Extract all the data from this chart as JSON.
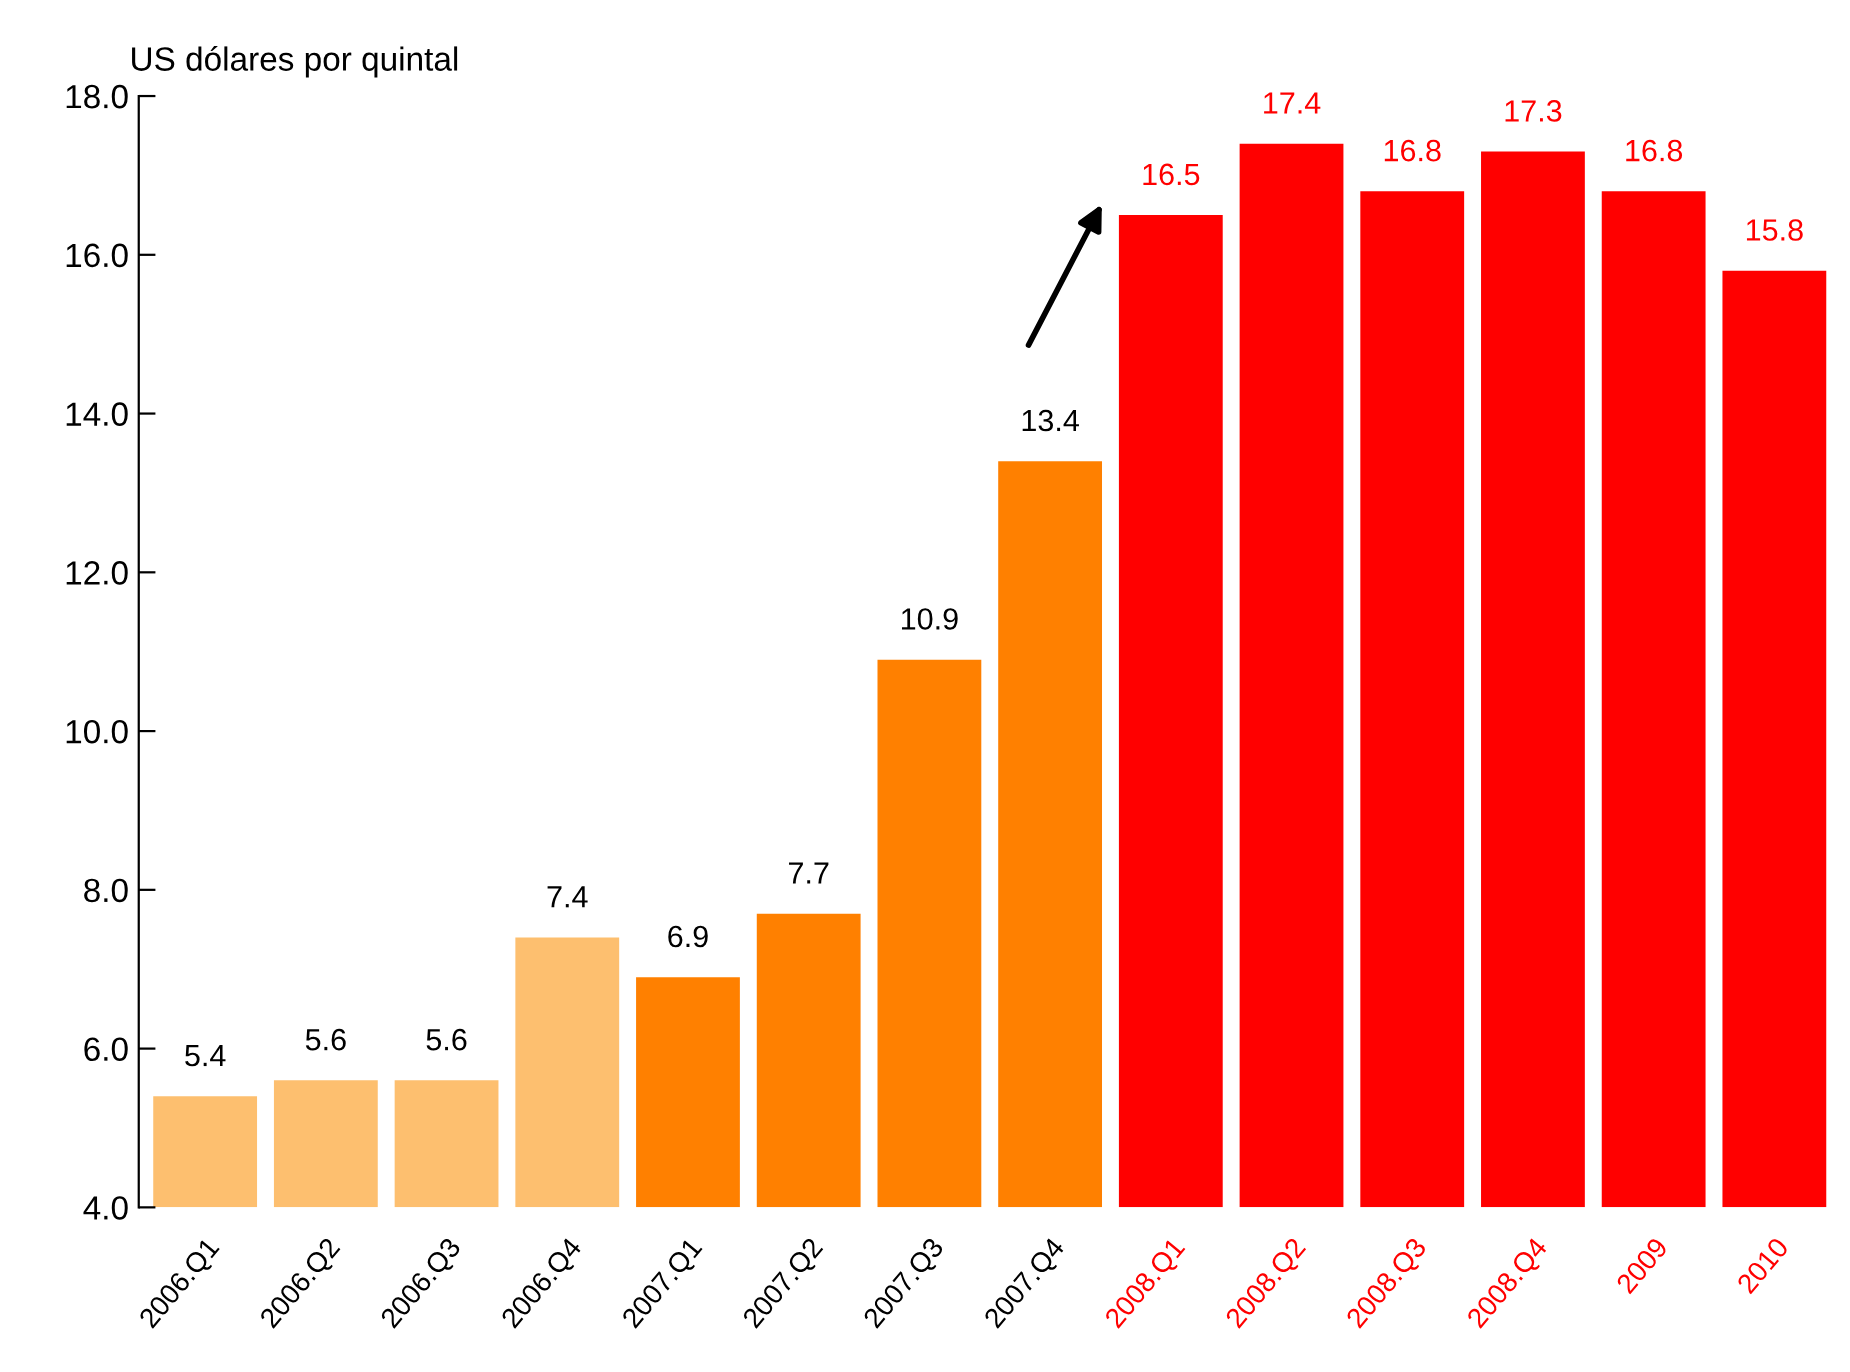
{
  "chart_data": {
    "type": "bar",
    "ylabel": "US dólares por quintal",
    "categories": [
      "2006.Q1",
      "2006.Q2",
      "2006.Q3",
      "2006.Q4",
      "2007.Q1",
      "2007.Q2",
      "2007.Q3",
      "2007.Q4",
      "2008.Q1",
      "2008.Q2",
      "2008.Q3",
      "2008.Q4",
      "2009",
      "2010"
    ],
    "values": [
      5.4,
      5.6,
      5.6,
      7.4,
      6.9,
      7.7,
      10.9,
      13.4,
      16.5,
      17.4,
      16.8,
      17.3,
      16.8,
      15.8
    ],
    "colors": [
      "#fdbf6f",
      "#fdbf6f",
      "#fdbf6f",
      "#fdbf6f",
      "#ff8000",
      "#ff8000",
      "#ff8000",
      "#ff8000",
      "#ff0000",
      "#ff0000",
      "#ff0000",
      "#ff0000",
      "#ff0000",
      "#ff0000"
    ],
    "ylim": [
      4,
      18
    ],
    "yticks": [
      {
        "value": 4,
        "label": "4.0"
      },
      {
        "value": 6,
        "label": "6.0"
      },
      {
        "value": 8,
        "label": "8.0"
      },
      {
        "value": 10,
        "label": "10.0"
      },
      {
        "value": 12,
        "label": "12.0"
      },
      {
        "value": 14,
        "label": "14.0"
      },
      {
        "value": 16,
        "label": "16.0"
      },
      {
        "value": 18,
        "label": "18.0"
      }
    ],
    "data_labels": true,
    "grid": false
  }
}
